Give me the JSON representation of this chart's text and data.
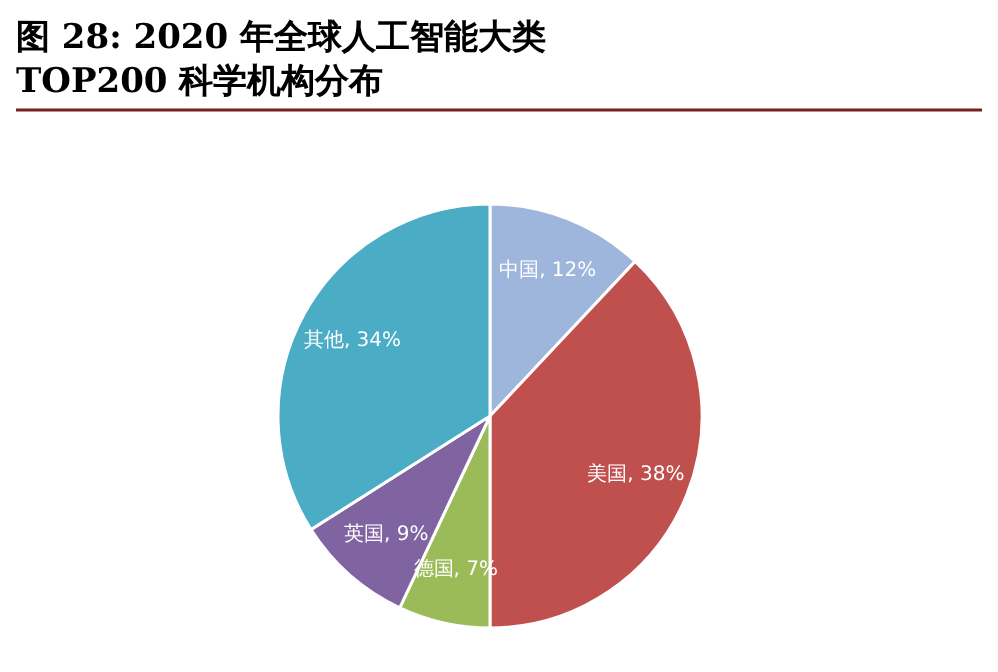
{
  "chart_data": {
    "type": "pie",
    "title": "图 28: 2020 年全球人工智能大类TOP200 科学机构分布",
    "categories": [
      "中国",
      "美国",
      "德国",
      "英国",
      "其他"
    ],
    "values": [
      12,
      38,
      7,
      9,
      34
    ],
    "colors": [
      "#9fb6dc",
      "#c0504d",
      "#9bbb59",
      "#8064a2",
      "#4bacc6"
    ],
    "value_labels": [
      ", 12%",
      ", 38%",
      ", 7%",
      ", 9%",
      ", 34%"
    ]
  }
}
